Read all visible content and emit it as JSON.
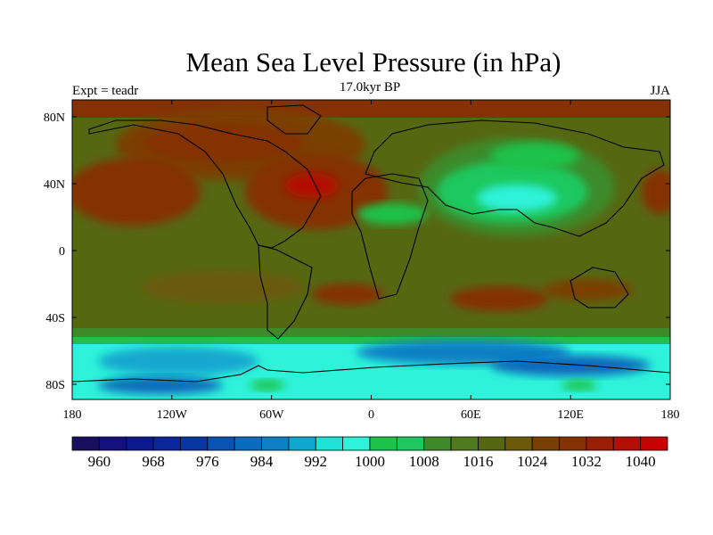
{
  "header": {
    "title": "Mean Sea Level Pressure (in hPa)",
    "subtitle": "17.0kyr BP",
    "left_label": "Expt = teadr",
    "right_label": "JJA"
  },
  "map": {
    "lat_ticks": [
      "80N",
      "40N",
      "0",
      "40S",
      "80S"
    ],
    "lon_ticks": [
      "180",
      "120W",
      "60W",
      "0",
      "60E",
      "120E",
      "180"
    ]
  },
  "colorbar": {
    "colors": [
      "#1a0f5e",
      "#14127a",
      "#0d1a8e",
      "#0a2699",
      "#0a36a3",
      "#0a53b3",
      "#0b6bbc",
      "#0f80c4",
      "#12a7cf",
      "#1ee3d6",
      "#2ef2da",
      "#1cc24a",
      "#1fc85e",
      "#3e8a2b",
      "#4f7a1e",
      "#566712",
      "#6b5a0a",
      "#7a3f05",
      "#843205",
      "#9a1e04",
      "#b30f04",
      "#c90303"
    ],
    "labels": [
      "960",
      "968",
      "976",
      "984",
      "992",
      "1000",
      "1008",
      "1016",
      "1024",
      "1032",
      "1040"
    ]
  }
}
